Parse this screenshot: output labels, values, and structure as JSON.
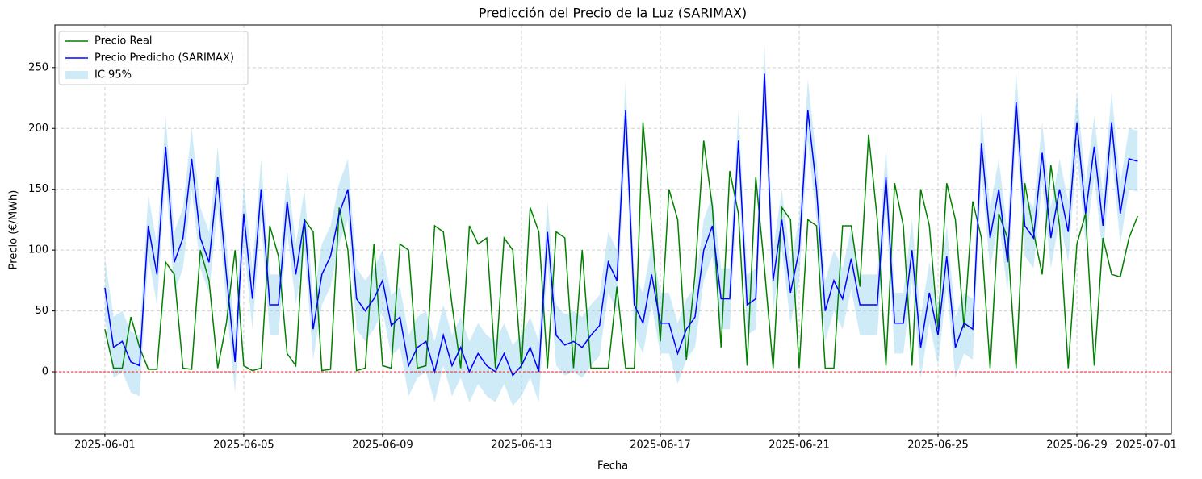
{
  "chart_data": {
    "type": "line",
    "title": "Predicción del Precio de la Luz (SARIMAX)",
    "x_label": "Fecha",
    "y_label": "Precio (€/MWh)",
    "x": [
      0,
      0.25,
      0.5,
      0.75,
      1,
      1.25,
      1.5,
      1.75,
      2,
      2.25,
      2.5,
      2.75,
      3,
      3.25,
      3.5,
      3.75,
      4,
      4.25,
      4.5,
      4.75,
      5,
      5.25,
      5.5,
      5.75,
      6,
      6.25,
      6.5,
      6.75,
      7,
      7.25,
      7.5,
      7.75,
      8,
      8.25,
      8.5,
      8.75,
      9,
      9.25,
      9.5,
      9.75,
      10,
      10.25,
      10.5,
      10.75,
      11,
      11.25,
      11.5,
      11.75,
      12,
      12.25,
      12.5,
      12.75,
      13,
      13.25,
      13.5,
      13.75,
      14,
      14.25,
      14.5,
      14.75,
      15,
      15.25,
      15.5,
      15.75,
      16,
      16.25,
      16.5,
      16.75,
      17,
      17.25,
      17.5,
      17.75,
      18,
      18.25,
      18.5,
      18.75,
      19,
      19.25,
      19.5,
      19.75,
      20,
      20.25,
      20.5,
      20.75,
      21,
      21.25,
      21.5,
      21.75,
      22,
      22.25,
      22.5,
      22.75,
      23,
      23.25,
      23.5,
      23.75,
      24,
      24.25,
      24.5,
      24.75,
      25,
      25.25,
      25.5,
      25.75,
      26,
      26.25,
      26.5,
      26.75,
      27,
      27.25,
      27.5,
      27.75,
      28,
      28.25,
      28.5,
      28.75,
      29,
      29.25,
      29.5,
      29.75
    ],
    "series": [
      {
        "name": "Precio Real",
        "color": "#008000",
        "values": [
          35,
          3,
          3,
          45,
          20,
          2,
          2,
          90,
          80,
          3,
          2,
          100,
          75,
          3,
          40,
          100,
          5,
          1,
          3,
          120,
          95,
          15,
          5,
          125,
          115,
          1,
          2,
          135,
          100,
          1,
          3,
          105,
          5,
          3,
          105,
          100,
          3,
          5,
          120,
          115,
          55,
          3,
          120,
          105,
          110,
          3,
          110,
          100,
          3,
          135,
          115,
          3,
          115,
          110,
          3,
          100,
          3,
          3,
          3,
          70,
          3,
          3,
          205,
          120,
          25,
          150,
          125,
          10,
          80,
          190,
          135,
          20,
          165,
          130,
          5,
          160,
          85,
          3,
          135,
          125,
          3,
          125,
          120,
          3,
          3,
          120,
          120,
          70,
          195,
          125,
          5,
          155,
          120,
          5,
          150,
          120,
          35,
          155,
          125,
          36,
          140,
          110,
          3,
          130,
          110,
          3,
          155,
          115,
          80,
          170,
          120,
          3,
          105,
          130,
          5,
          110,
          80,
          78,
          110,
          128
        ]
      },
      {
        "name": "Precio Predicho (SARIMAX)",
        "color": "#0000ff",
        "values": [
          69,
          20,
          25,
          8,
          5,
          120,
          80,
          185,
          90,
          110,
          175,
          110,
          90,
          160,
          80,
          8,
          130,
          60,
          150,
          55,
          55,
          140,
          80,
          125,
          35,
          80,
          95,
          130,
          150,
          60,
          50,
          60,
          75,
          38,
          45,
          5,
          20,
          25,
          0,
          30,
          5,
          20,
          0,
          15,
          5,
          0,
          15,
          -3,
          5,
          20,
          0,
          115,
          30,
          22,
          25,
          20,
          30,
          38,
          90,
          75,
          215,
          55,
          40,
          80,
          40,
          40,
          15,
          35,
          45,
          100,
          120,
          60,
          60,
          190,
          55,
          60,
          245,
          75,
          125,
          65,
          100,
          215,
          150,
          50,
          75,
          60,
          93,
          55,
          55,
          55,
          160,
          40,
          40,
          100,
          20,
          65,
          30,
          95,
          20,
          40,
          35,
          188,
          110,
          150,
          90,
          222,
          120,
          110,
          180,
          110,
          150,
          115,
          205,
          130,
          185,
          120,
          205,
          130,
          175,
          173
        ]
      }
    ],
    "band": {
      "name": "IC 95%",
      "color": "#87ceeb",
      "lower": [
        44,
        -5,
        0,
        -17,
        -20,
        95,
        55,
        160,
        65,
        85,
        150,
        85,
        65,
        135,
        55,
        -17,
        105,
        35,
        125,
        30,
        30,
        115,
        55,
        100,
        10,
        55,
        70,
        105,
        125,
        35,
        25,
        35,
        50,
        13,
        20,
        -20,
        -5,
        0,
        -25,
        5,
        -20,
        -5,
        -25,
        -10,
        -20,
        -25,
        -10,
        -28,
        -20,
        -5,
        -25,
        90,
        5,
        -3,
        0,
        -5,
        5,
        13,
        65,
        50,
        190,
        30,
        15,
        55,
        15,
        15,
        -10,
        10,
        20,
        75,
        95,
        35,
        35,
        165,
        30,
        35,
        220,
        50,
        100,
        40,
        75,
        190,
        125,
        25,
        50,
        35,
        68,
        30,
        30,
        30,
        135,
        15,
        15,
        75,
        -5,
        40,
        5,
        70,
        -5,
        15,
        10,
        163,
        85,
        125,
        65,
        197,
        95,
        85,
        155,
        85,
        125,
        90,
        180,
        105,
        160,
        95,
        180,
        105,
        150,
        148
      ],
      "upper": [
        94,
        45,
        50,
        33,
        30,
        145,
        105,
        210,
        115,
        135,
        200,
        135,
        115,
        185,
        105,
        33,
        155,
        85,
        175,
        80,
        80,
        165,
        105,
        150,
        60,
        105,
        120,
        155,
        175,
        85,
        75,
        85,
        100,
        63,
        70,
        30,
        45,
        50,
        25,
        55,
        30,
        45,
        25,
        40,
        30,
        25,
        40,
        22,
        30,
        45,
        25,
        140,
        55,
        47,
        50,
        45,
        55,
        63,
        115,
        100,
        240,
        80,
        65,
        105,
        65,
        65,
        40,
        60,
        70,
        125,
        145,
        85,
        85,
        215,
        80,
        85,
        270,
        100,
        150,
        90,
        125,
        240,
        175,
        75,
        100,
        85,
        118,
        80,
        80,
        80,
        185,
        65,
        65,
        125,
        45,
        90,
        55,
        120,
        45,
        65,
        60,
        213,
        135,
        175,
        115,
        247,
        145,
        135,
        205,
        135,
        175,
        140,
        230,
        155,
        210,
        145,
        230,
        155,
        200,
        198
      ]
    },
    "hline": {
      "value": 0,
      "color": "#ff0000"
    },
    "xlim": [
      -1.44,
      30.72
    ],
    "ylim": [
      -51,
      285
    ],
    "xticks": [
      {
        "value": 0,
        "label": "2025-06-01"
      },
      {
        "value": 4,
        "label": "2025-06-05"
      },
      {
        "value": 8,
        "label": "2025-06-09"
      },
      {
        "value": 12,
        "label": "2025-06-13"
      },
      {
        "value": 16,
        "label": "2025-06-17"
      },
      {
        "value": 20,
        "label": "2025-06-21"
      },
      {
        "value": 24,
        "label": "2025-06-25"
      },
      {
        "value": 28,
        "label": "2025-06-29"
      },
      {
        "value": 30,
        "label": "2025-07-01"
      }
    ],
    "yticks": [
      0,
      50,
      100,
      150,
      200,
      250
    ],
    "grid": true,
    "legend": "upper-left"
  }
}
